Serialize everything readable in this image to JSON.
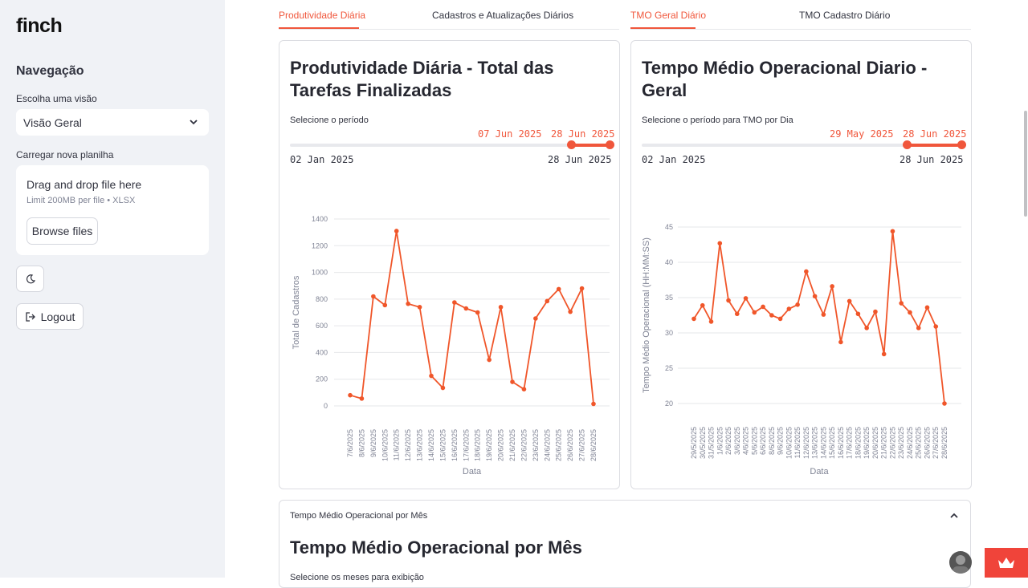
{
  "sidebar": {
    "logo": "finch",
    "nav_title": "Navegação",
    "view_label": "Escolha uma visão",
    "view_value": "Visão Geral",
    "upload_label": "Carregar nova planilha",
    "upload_title": "Drag and drop file here",
    "upload_limit": "Limit 200MB per file • XLSX",
    "browse_label": "Browse files",
    "logout_label": "Logout"
  },
  "tabs_left": [
    {
      "label": "Produtividade Diária",
      "active": true
    },
    {
      "label": "Cadastros e Atualizações Diários",
      "active": false
    }
  ],
  "tabs_right": [
    {
      "label": "TMO Geral Diário",
      "active": true
    },
    {
      "label": "TMO Cadastro Diário",
      "active": false
    }
  ],
  "card_left": {
    "title": "Produtividade Diária - Total das Tarefas Finalizadas",
    "period_label": "Selecione o período",
    "sel_start": "07 Jun 2025",
    "sel_end": "28 Jun 2025",
    "range_min": "02 Jan 2025",
    "range_max": "28 Jun 2025"
  },
  "card_right": {
    "title": "Tempo Médio Operacional Diario - Geral",
    "period_label": "Selecione o período para TMO por Dia",
    "sel_start": "29 May 2025",
    "sel_end": "28 Jun 2025",
    "range_min": "02 Jan 2025",
    "range_max": "28 Jun 2025"
  },
  "expander": {
    "header": "Tempo Médio Operacional por Mês",
    "title": "Tempo Médio Operacional por Mês",
    "sub": "Selecione os meses para exibição"
  },
  "colors": {
    "accent": "#f0563b",
    "line": "#f0562a"
  },
  "chart_data": [
    {
      "type": "line",
      "xlabel": "Data",
      "ylabel": "Total de Cadastros",
      "ylim": [
        0,
        1400
      ],
      "yticks": [
        0,
        200,
        400,
        600,
        800,
        1000,
        1200,
        1400
      ],
      "grid": true,
      "x": [
        "7/6/2025",
        "8/6/2025",
        "9/6/2025",
        "10/6/2025",
        "11/6/2025",
        "12/6/2025",
        "13/6/2025",
        "14/6/2025",
        "15/6/2025",
        "16/6/2025",
        "17/6/2025",
        "18/6/2025",
        "19/6/2025",
        "20/6/2025",
        "21/6/2025",
        "22/6/2025",
        "23/6/2025",
        "24/6/2025",
        "25/6/2025",
        "26/6/2025",
        "27/6/2025",
        "28/6/2025"
      ],
      "values": [
        80,
        55,
        820,
        755,
        1310,
        765,
        740,
        225,
        135,
        775,
        730,
        700,
        345,
        740,
        180,
        125,
        655,
        785,
        875,
        705,
        880,
        15
      ]
    },
    {
      "type": "line",
      "xlabel": "Data",
      "ylabel": "Tempo Médio Operacional (HH:MM:SS)",
      "ylim": [
        20,
        45
      ],
      "yticks": [
        20,
        25,
        30,
        35,
        40,
        45
      ],
      "grid": true,
      "x": [
        "29/5/2025",
        "30/5/2025",
        "31/5/2025",
        "1/6/2025",
        "2/6/2025",
        "3/6/2025",
        "4/6/2025",
        "5/6/2025",
        "6/6/2025",
        "8/6/2025",
        "9/6/2025",
        "10/6/2025",
        "11/6/2025",
        "12/6/2025",
        "13/6/2025",
        "14/6/2025",
        "15/6/2025",
        "16/6/2025",
        "17/6/2025",
        "18/6/2025",
        "19/6/2025",
        "20/6/2025",
        "21/6/2025",
        "22/6/2025",
        "23/6/2025",
        "24/6/2025",
        "25/6/2025",
        "26/6/2025",
        "27/6/2025",
        "28/6/2025"
      ],
      "values": [
        32.0,
        33.9,
        31.6,
        42.7,
        34.6,
        32.7,
        34.9,
        32.9,
        33.7,
        32.5,
        32.0,
        33.4,
        34.0,
        38.7,
        35.2,
        32.6,
        36.6,
        28.7,
        34.5,
        32.7,
        30.7,
        33.0,
        27.0,
        44.4,
        34.2,
        32.9,
        30.7,
        33.6,
        30.9,
        20.0
      ]
    }
  ]
}
